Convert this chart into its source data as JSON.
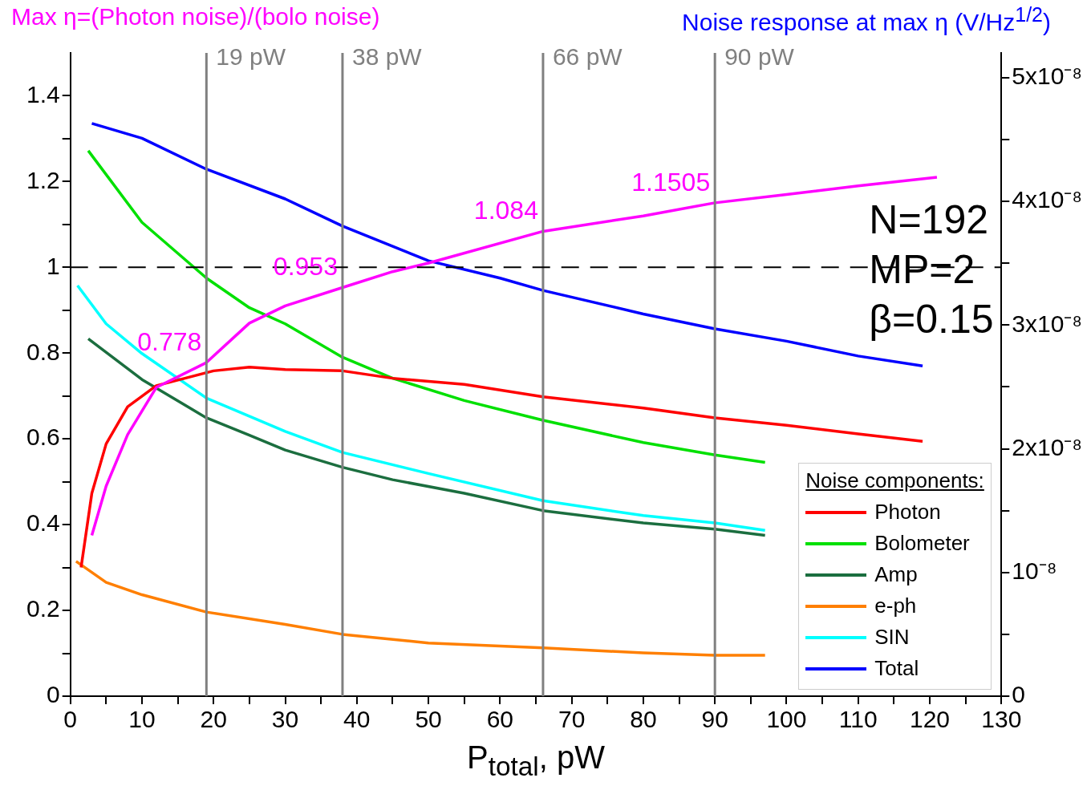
{
  "chart_data": {
    "type": "line",
    "ylabel": "Max η=(Photon noise)/(bolo noise)",
    "y2label": "Noise response at max η (V/Hz$^{1/2}$)",
    "xlabel": "P$_{total}$, pW",
    "legend_title": "Noise components:",
    "legend": "bottom right",
    "xlim": [
      0,
      130
    ],
    "xticks": [
      0,
      {
        "value": 5,
        "label": null
      },
      10,
      {
        "value": 15,
        "label": null
      },
      20,
      {
        "value": 25,
        "label": null
      },
      30,
      {
        "value": 35,
        "label": null
      },
      40,
      {
        "value": 45,
        "label": null
      },
      50,
      {
        "value": 55,
        "label": null
      },
      60,
      {
        "value": 65,
        "label": null
      },
      70,
      {
        "value": 75,
        "label": null
      },
      80,
      {
        "value": 85,
        "label": null
      },
      90,
      {
        "value": 95,
        "label": null
      },
      100,
      {
        "value": 105,
        "label": null
      },
      110,
      {
        "value": 115,
        "label": null
      },
      120,
      {
        "value": 125,
        "label": null
      },
      130
    ],
    "ylim": [
      0,
      1.5
    ],
    "yticks": [
      0,
      {
        "value": 0.1,
        "label": null
      },
      0.2,
      {
        "value": 0.3,
        "label": null
      },
      0.4,
      {
        "value": 0.5,
        "label": null
      },
      0.6,
      {
        "value": 0.7,
        "label": null
      },
      0.8,
      {
        "value": 0.9,
        "label": null
      },
      1,
      {
        "value": 1.1,
        "label": null
      },
      1.2,
      {
        "value": 1.3,
        "label": null
      },
      1.4
    ],
    "y2lim": [
      0,
      5.2e-08
    ],
    "y2ticks": [
      {
        "value": 0,
        "label": "0"
      },
      {
        "value": 5e-09,
        "label": null
      },
      {
        "value": 1e-08,
        "label": "10⁻⁸"
      },
      {
        "value": 1.5e-08,
        "label": null
      },
      {
        "value": 2e-08,
        "label": "2x10⁻⁸"
      },
      {
        "value": 2.5e-08,
        "label": null
      },
      {
        "value": 3e-08,
        "label": "3x10⁻⁸"
      },
      {
        "value": 3.5e-08,
        "label": null
      },
      {
        "value": 4e-08,
        "label": "4x10⁻⁸"
      },
      {
        "value": 4.5e-08,
        "label": null
      },
      {
        "value": 5e-08,
        "label": "5x10⁻⁸"
      }
    ],
    "series": [
      {
        "color": "#ff00ff",
        "x": [
          3,
          5,
          8,
          12,
          19,
          25,
          30,
          38,
          45,
          50,
          66,
          80,
          90,
          100,
          110,
          121
        ],
        "values": [
          0.375,
          0.49,
          0.61,
          0.72,
          0.778,
          0.87,
          0.91,
          0.953,
          0.99,
          1.01,
          1.084,
          1.12,
          1.1505,
          1.17,
          1.19,
          1.21
        ]
      },
      {
        "name": "Photon",
        "color": "#ff0000",
        "axis": "y2",
        "x": [
          1.5,
          3,
          5,
          8,
          12,
          16,
          20,
          25,
          30,
          38,
          45,
          55,
          66,
          80,
          90,
          100,
          110,
          119
        ],
        "values": [
          1.04e-08,
          1.64e-08,
          2.04e-08,
          2.34e-08,
          2.51e-08,
          2.57e-08,
          2.63e-08,
          2.66e-08,
          2.64e-08,
          2.63e-08,
          2.57e-08,
          2.52e-08,
          2.42e-08,
          2.33e-08,
          2.25e-08,
          2.19e-08,
          2.12e-08,
          2.06e-08
        ]
      },
      {
        "name": "Bolometer",
        "color": "#00e000",
        "axis": "y2",
        "x": [
          2.5,
          10,
          19,
          25,
          30,
          38,
          45,
          55,
          66,
          80,
          90,
          97
        ],
        "values": [
          4.41e-08,
          3.83e-08,
          3.38e-08,
          3.14e-08,
          3.01e-08,
          2.74e-08,
          2.57e-08,
          2.39e-08,
          2.23e-08,
          2.05e-08,
          1.95e-08,
          1.89e-08
        ]
      },
      {
        "name": "Amp",
        "color": "#1b6e3f",
        "axis": "y2",
        "x": [
          2.5,
          10,
          19,
          25,
          30,
          38,
          45,
          55,
          66,
          80,
          90,
          97
        ],
        "values": [
          2.89e-08,
          2.56e-08,
          2.25e-08,
          2.11e-08,
          1.99e-08,
          1.85e-08,
          1.75e-08,
          1.64e-08,
          1.5e-08,
          1.4e-08,
          1.35e-08,
          1.3e-08
        ]
      },
      {
        "name": "e-ph",
        "color": "#ff7f00",
        "axis": "y2",
        "x": [
          0.8,
          5,
          10,
          19,
          30,
          38,
          50,
          66,
          80,
          90,
          97
        ],
        "values": [
          1.09e-08,
          9.2e-09,
          8.2e-09,
          6.8e-09,
          5.8e-09,
          5e-09,
          4.3e-09,
          3.9e-09,
          3.5e-09,
          3.3e-09,
          3.3e-09
        ]
      },
      {
        "name": "SIN",
        "color": "#00ffff",
        "axis": "y2",
        "x": [
          1,
          5,
          10,
          19,
          30,
          38,
          50,
          66,
          80,
          90,
          97
        ],
        "values": [
          3.32e-08,
          3.01e-08,
          2.77e-08,
          2.41e-08,
          2.14e-08,
          1.97e-08,
          1.8e-08,
          1.58e-08,
          1.46e-08,
          1.4e-08,
          1.34e-08
        ]
      },
      {
        "name": "Total",
        "color": "#0000ff",
        "axis": "y2",
        "x": [
          3,
          10,
          19,
          30,
          38,
          50,
          60,
          66,
          80,
          90,
          100,
          110,
          119
        ],
        "values": [
          4.63e-08,
          4.51e-08,
          4.26e-08,
          4.02e-08,
          3.8e-08,
          3.52e-08,
          3.38e-08,
          3.28e-08,
          3.09e-08,
          2.97e-08,
          2.87e-08,
          2.75e-08,
          2.67e-08
        ]
      }
    ],
    "ref_lines": [
      {
        "axis": "x",
        "value": 19,
        "label": "19 pW",
        "color": "#808080"
      },
      {
        "axis": "x",
        "value": 38,
        "label": "38 pW",
        "color": "#808080"
      },
      {
        "axis": "x",
        "value": 66,
        "label": "66 pW",
        "color": "#808080"
      },
      {
        "axis": "x",
        "value": 90,
        "label": "90 pW",
        "color": "#808080"
      },
      {
        "axis": "y",
        "value": 1,
        "label": null,
        "color": "#000000",
        "line_style": "dashed"
      }
    ],
    "annotations": [
      {
        "text": "0.778",
        "x": 19,
        "y": 0.778
      },
      {
        "text": "0.953",
        "x": 38,
        "y": 0.953
      },
      {
        "text": "1.084",
        "x": 66,
        "y": 1.084
      },
      {
        "text": "1.1505",
        "x": 90,
        "y": 1.1505
      },
      "N=192",
      "MP=2",
      "β=0.15"
    ]
  }
}
